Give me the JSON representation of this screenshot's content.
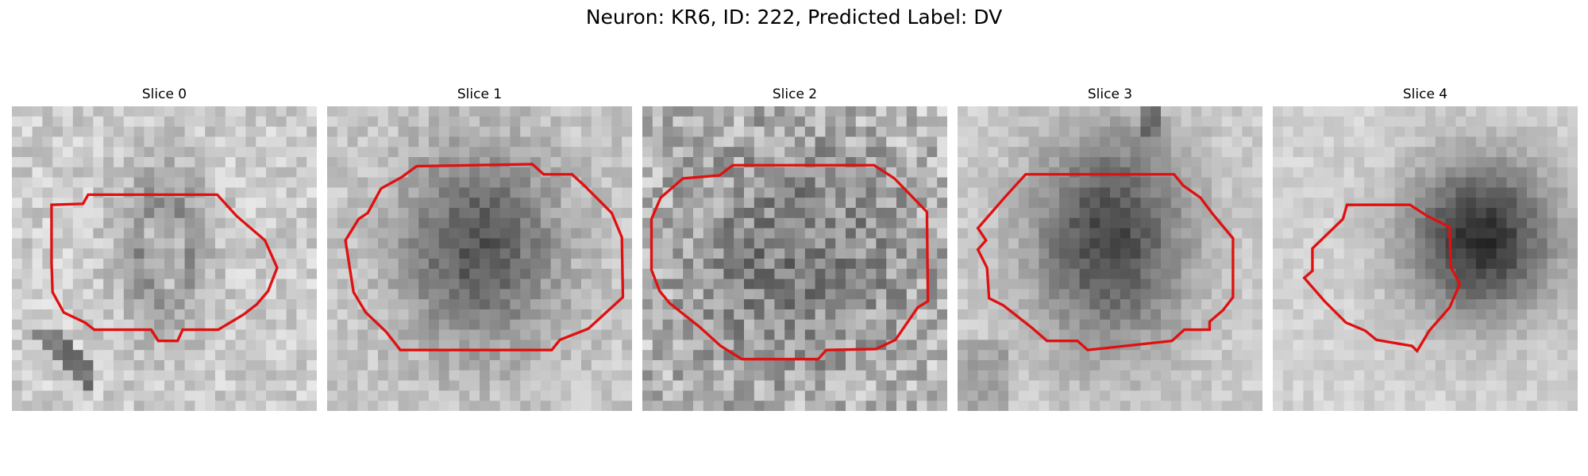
{
  "figure": {
    "title": "Neuron: KR6, ID: 222, Predicted Label: DV",
    "contour_color": "#e01010",
    "colormap": "grayscale",
    "panels": [
      {
        "label": "Slice 0"
      },
      {
        "label": "Slice 1"
      },
      {
        "label": "Slice 2"
      },
      {
        "label": "Slice 3"
      },
      {
        "label": "Slice 4"
      }
    ]
  }
}
